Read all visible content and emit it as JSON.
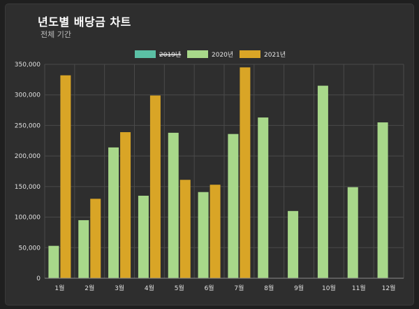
{
  "header": {
    "title": "년도별 배당금 차트",
    "subtitle": "전체 기간"
  },
  "colors": {
    "background": "#2e2e2e",
    "grid": "#4a4a4a",
    "series_2019": "#5bc0a5",
    "series_2020": "#a8d88a",
    "series_2021": "#d9a526"
  },
  "chart_data": {
    "type": "bar",
    "title": "년도별 배당금 차트",
    "subtitle": "전체 기간",
    "categories": [
      "1월",
      "2월",
      "3월",
      "4월",
      "5월",
      "6월",
      "7월",
      "8월",
      "9월",
      "10월",
      "11월",
      "12월"
    ],
    "ylim": [
      0,
      350000
    ],
    "yticks": [
      0,
      50000,
      100000,
      150000,
      200000,
      250000,
      300000,
      350000
    ],
    "ytick_labels": [
      "0",
      "50,000",
      "100,000",
      "150,000",
      "200,000",
      "250,000",
      "300,000",
      "350,000"
    ],
    "grid": true,
    "legend_position": "top-center",
    "series": [
      {
        "name": "2019년",
        "hidden": true,
        "values": [
          null,
          null,
          null,
          null,
          null,
          null,
          null,
          null,
          null,
          null,
          null,
          null
        ]
      },
      {
        "name": "2020년",
        "hidden": false,
        "values": [
          53000,
          95000,
          214000,
          135000,
          238000,
          141000,
          236000,
          263000,
          110000,
          315000,
          149000,
          255000
        ]
      },
      {
        "name": "2021년",
        "hidden": false,
        "values": [
          332000,
          130000,
          239000,
          299000,
          161000,
          153000,
          345000,
          null,
          null,
          null,
          null,
          null
        ]
      }
    ]
  }
}
